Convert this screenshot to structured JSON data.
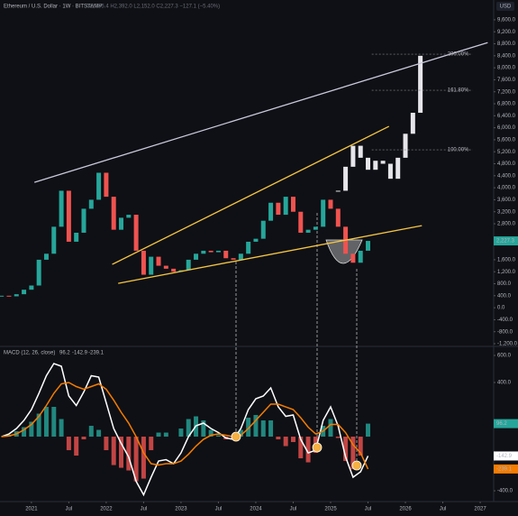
{
  "chart_data": [
    {
      "type": "candlestick",
      "title": "Ethereum / U.S. Dollar · 1W · BITSTAMP",
      "ohlc": "O2,355.4 H2,392.0 L2,152.0 C2,227.3 −127.1 (−5.40%)",
      "currency": "USD",
      "xlim": [
        2020.58,
        2027.18
      ],
      "ylim": [
        -1260,
        10260
      ],
      "yticks": [
        {
          "value": 9600,
          "label": "9,600.0"
        },
        {
          "value": 9200,
          "label": "9,200.0"
        },
        {
          "value": 8800,
          "label": "8,800.0"
        },
        {
          "value": 8400,
          "label": "8,400.0"
        },
        {
          "value": 8000,
          "label": "8,000.0"
        },
        {
          "value": 7600,
          "label": "7,600.0"
        },
        {
          "value": 7200,
          "label": "7,200.0"
        },
        {
          "value": 6800,
          "label": "6,800.0"
        },
        {
          "value": 6400,
          "label": "6,400.0"
        },
        {
          "value": 6000,
          "label": "6,000.0"
        },
        {
          "value": 5600,
          "label": "5,600.0"
        },
        {
          "value": 5200,
          "label": "5,200.0"
        },
        {
          "value": 4800,
          "label": "4,800.0"
        },
        {
          "value": 4400,
          "label": "4,400.0"
        },
        {
          "value": 4000,
          "label": "4,000.0"
        },
        {
          "value": 3600,
          "label": "3,600.0"
        },
        {
          "value": 3200,
          "label": "3,200.0"
        },
        {
          "value": 2800,
          "label": "2,800.0"
        },
        {
          "value": 1600,
          "label": "1,600.0"
        },
        {
          "value": 1200,
          "label": "1,200.0"
        },
        {
          "value": 800,
          "label": "800.0"
        },
        {
          "value": 400,
          "label": "400.0"
        },
        {
          "value": 0,
          "label": "0.0"
        },
        {
          "value": -400,
          "label": "-400.0"
        },
        {
          "value": -800,
          "label": "-800.0"
        },
        {
          "value": -1200,
          "label": "-1,200.0"
        }
      ],
      "colors": {
        "up": "#26a69a",
        "down": "#ef5350"
      },
      "x": [
        2020.6,
        2020.7,
        2020.8,
        2020.9,
        2021.0,
        2021.1,
        2021.2,
        2021.3,
        2021.4,
        2021.5,
        2021.6,
        2021.7,
        2021.8,
        2021.9,
        2022.0,
        2022.1,
        2022.2,
        2022.3,
        2022.4,
        2022.5,
        2022.6,
        2022.7,
        2022.8,
        2022.9,
        2023.0,
        2023.1,
        2023.2,
        2023.3,
        2023.4,
        2023.5,
        2023.6,
        2023.7,
        2023.8,
        2023.9,
        2024.0,
        2024.1,
        2024.2,
        2024.3,
        2024.4,
        2024.5,
        2024.6,
        2024.7,
        2024.8,
        2024.9,
        2025.0,
        2025.1,
        2025.2,
        2025.3,
        2025.4,
        2025.5
      ],
      "values": [
        400,
        380,
        450,
        600,
        740,
        1600,
        1800,
        2700,
        3900,
        2200,
        2500,
        3300,
        3600,
        4500,
        3700,
        2600,
        3000,
        3100,
        1900,
        1100,
        1700,
        1400,
        1300,
        1200,
        1250,
        1600,
        1800,
        1900,
        1850,
        1900,
        1650,
        1600,
        1800,
        2200,
        2300,
        2900,
        3500,
        3100,
        3700,
        3200,
        2500,
        2600,
        2700,
        3600,
        3300,
        2700,
        1800,
        1500,
        1900,
        2227.3
      ],
      "last_label": {
        "value": 2227.3,
        "label": "2,227.3"
      },
      "projection": {
        "color": "#e6e6ea",
        "x": [
          2025.1,
          2025.2,
          2025.3,
          2025.4,
          2025.5,
          2025.6,
          2025.7,
          2025.8,
          2025.9,
          2026.0,
          2026.1,
          2026.2
        ],
        "values": [
          3900,
          4700,
          5400,
          5000,
          4600,
          4900,
          4800,
          4300,
          5000,
          5800,
          6500,
          8400
        ]
      },
      "lines": [
        {
          "color": "#c9c9dc",
          "points": [
            [
              2021.04,
              4180
            ],
            [
              2027.1,
              8840
            ]
          ]
        },
        {
          "color": "#f5c542",
          "points": [
            [
              2022.08,
              1444
            ],
            [
              2025.78,
              6047
            ]
          ]
        },
        {
          "color": "#f5c542",
          "points": [
            [
              2022.16,
              812
            ],
            [
              2026.22,
              2738
            ]
          ]
        }
      ],
      "levels": [
        {
          "label": "200.00%",
          "price": 8454
        },
        {
          "label": "161.80%",
          "price": 7250
        },
        {
          "label": "100.00%",
          "price": 5265
        }
      ],
      "level_x": [
        2025.55,
        2026.9
      ]
    },
    {
      "type": "macd",
      "title": "MACD (12, 26, close)",
      "xlim": [
        2020.58,
        2027.18
      ],
      "ylim": [
        -473,
        660
      ],
      "yticks": [
        {
          "value": 600,
          "label": "600.0"
        },
        {
          "value": 400,
          "label": "400.0"
        },
        {
          "value": -400,
          "label": "-400.0"
        }
      ],
      "xticks": [
        2021,
        {
          "value": 2021.5,
          "label": "Jul"
        },
        2022,
        {
          "value": 2022.5,
          "label": "Jul"
        },
        2023,
        {
          "value": 2023.5,
          "label": "Jul"
        },
        2024,
        {
          "value": 2024.5,
          "label": "Jul"
        },
        2025,
        {
          "value": 2025.5,
          "label": "Jul"
        },
        2026,
        {
          "value": 2026.5,
          "label": "Jul"
        },
        2027
      ],
      "x": [
        2020.6,
        2020.7,
        2020.8,
        2020.9,
        2021.0,
        2021.1,
        2021.2,
        2021.3,
        2021.4,
        2021.5,
        2021.6,
        2021.7,
        2021.8,
        2021.9,
        2022.0,
        2022.1,
        2022.2,
        2022.3,
        2022.4,
        2022.5,
        2022.6,
        2022.7,
        2022.8,
        2022.9,
        2023.0,
        2023.1,
        2023.2,
        2023.3,
        2023.4,
        2023.5,
        2023.6,
        2023.7,
        2023.8,
        2023.9,
        2024.0,
        2024.1,
        2024.2,
        2024.3,
        2024.4,
        2024.5,
        2024.6,
        2024.7,
        2024.8,
        2024.9,
        2025.0,
        2025.1,
        2025.2,
        2025.3,
        2025.4,
        2025.5
      ],
      "histogram": {
        "values": [
          0,
          15,
          40,
          70,
          110,
          170,
          220,
          220,
          130,
          -100,
          -140,
          -20,
          80,
          50,
          -100,
          -210,
          -230,
          -250,
          -330,
          -310,
          -100,
          30,
          30,
          0,
          60,
          130,
          150,
          120,
          50,
          10,
          -20,
          -20,
          50,
          140,
          160,
          120,
          120,
          -20,
          -70,
          -40,
          -160,
          -190,
          -120,
          80,
          130,
          -10,
          -180,
          -240,
          -140,
          96.2
        ]
      },
      "colors": {
        "up": "#26a69a",
        "down": "#ef5350"
      },
      "series": [
        {
          "color": "#ffffff",
          "values": [
            0,
            20,
            60,
            120,
            200,
            320,
            450,
            540,
            520,
            300,
            230,
            330,
            450,
            440,
            250,
            60,
            -50,
            -150,
            -330,
            -430,
            -300,
            -180,
            -170,
            -200,
            -120,
            0,
            80,
            100,
            60,
            30,
            -10,
            -20,
            60,
            200,
            280,
            300,
            360,
            220,
            150,
            160,
            -20,
            -120,
            -100,
            120,
            220,
            80,
            -150,
            -300,
            -260,
            -142.9
          ]
        },
        {
          "color": "#f57c00",
          "values": [
            0,
            5,
            20,
            50,
            90,
            150,
            230,
            320,
            390,
            400,
            370,
            350,
            370,
            390,
            350,
            270,
            180,
            100,
            0,
            -120,
            -200,
            -210,
            -200,
            -200,
            -180,
            -130,
            -70,
            -20,
            10,
            20,
            10,
            0,
            10,
            60,
            120,
            180,
            240,
            240,
            220,
            200,
            140,
            70,
            20,
            40,
            90,
            90,
            30,
            -60,
            -120,
            -239.1
          ]
        }
      ]
    }
  ]
}
